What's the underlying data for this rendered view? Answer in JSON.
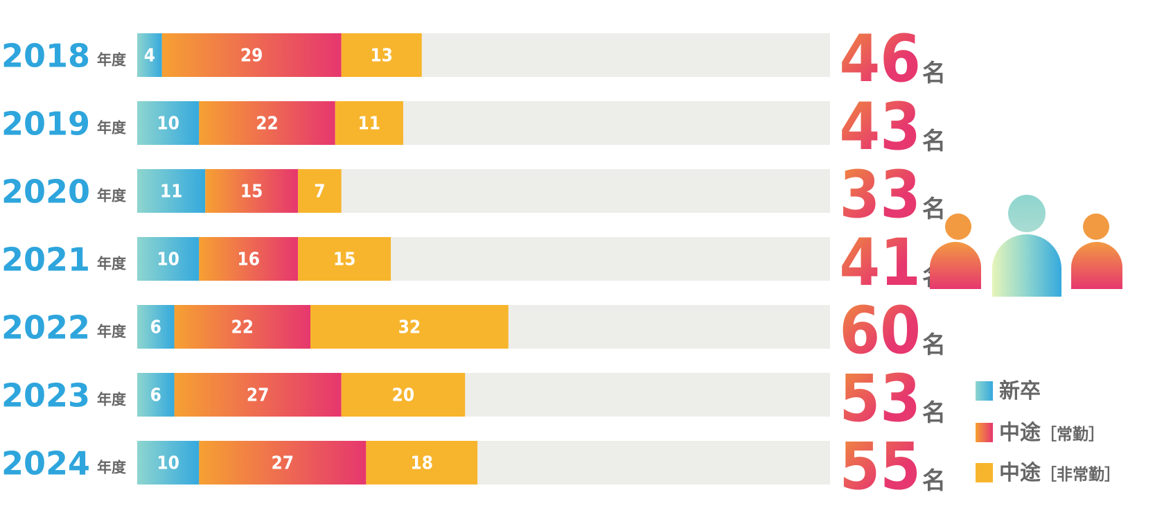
{
  "colors": {
    "shinsotsu": [
      "#8ed5cf",
      "#35a9dd"
    ],
    "chuto_jokin": [
      "#f6a033",
      "#e6376e"
    ],
    "chuto_hijokin": "#f7b52d",
    "track": "#edede9",
    "year_text": "#2ea5dc",
    "gray_text": "#666666",
    "total": [
      "#f0913a",
      "#e6376e"
    ]
  },
  "chart_data": {
    "type": "bar",
    "orientation": "horizontal",
    "stacked": true,
    "categories": [
      "2018",
      "2019",
      "2020",
      "2021",
      "2022",
      "2023",
      "2024"
    ],
    "category_suffix": "年度",
    "series": [
      {
        "name": "新卒",
        "values": [
          4,
          10,
          11,
          10,
          6,
          6,
          10
        ]
      },
      {
        "name": "中途［常勤］",
        "values": [
          29,
          22,
          15,
          16,
          22,
          27,
          27
        ]
      },
      {
        "name": "中途［非常勤］",
        "values": [
          13,
          11,
          7,
          15,
          32,
          20,
          18
        ]
      }
    ],
    "totals": [
      "46",
      "43",
      "33",
      "41",
      "60",
      "53",
      "55"
    ],
    "total_unit": "名",
    "xlim": [
      0,
      112
    ],
    "legend_position": "bottom-right",
    "grid": false
  },
  "legend": {
    "shinsotsu": "新卒",
    "chuto": "中途",
    "jokin": "［常勤］",
    "hijokin": "［非常勤］"
  },
  "icon": "people-group-icon"
}
